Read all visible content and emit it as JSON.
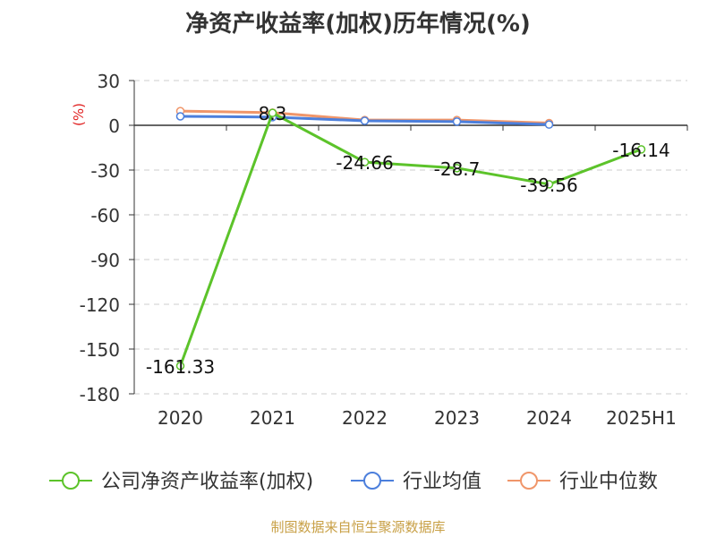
{
  "chart_data": {
    "type": "line",
    "title": "净资产收益率(加权)历年情况(%)",
    "ylabel": "(%)",
    "xlabel": "",
    "categories": [
      "2020",
      "2021",
      "2022",
      "2023",
      "2024",
      "2025H1"
    ],
    "ylim": [
      -180,
      30
    ],
    "yticks": [
      30,
      0,
      -30,
      -60,
      -90,
      -120,
      -150,
      -180
    ],
    "grid": true,
    "legend_position": "bottom",
    "series": [
      {
        "name": "公司净资产收益率(加权)",
        "color": "#5cc32a",
        "values": [
          -161.33,
          8.3,
          -24.66,
          -28.7,
          -39.56,
          -16.14
        ],
        "labels": [
          "-161.33",
          "8.3",
          "-24.66",
          "-28.7",
          "-39.56",
          "-16.14"
        ]
      },
      {
        "name": "行业均值",
        "color": "#4c7fdc",
        "values": [
          6,
          5.5,
          3.0,
          2.5,
          0.5,
          null
        ]
      },
      {
        "name": "行业中位数",
        "color": "#f0966a",
        "values": [
          9.5,
          8.5,
          3.5,
          3.5,
          1.5,
          null
        ]
      }
    ]
  },
  "source": "制图数据来自恒生聚源数据库"
}
